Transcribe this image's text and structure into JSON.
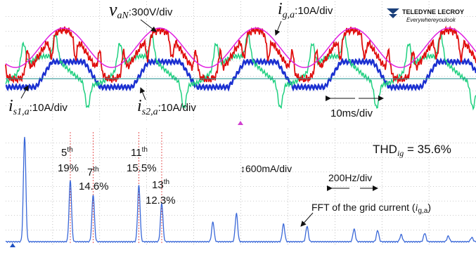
{
  "top_panel": {
    "labels": {
      "v_an": {
        "symbol": "v",
        "sub": "aN",
        "scale": ":300V/div"
      },
      "i_ga": {
        "symbol": "i",
        "sub": "g,a",
        "scale": ":10A/div"
      },
      "i_s1a": {
        "symbol": "i",
        "sub": "s1,a",
        "scale": ":10A/div"
      },
      "i_s2a": {
        "symbol": "i",
        "sub": "s2,a",
        "scale": ":10A/div"
      },
      "time_div": "10ms/div"
    },
    "logo": {
      "brand": "TELEDYNE LECROY",
      "tagline": "Everywhereyoulook"
    }
  },
  "bottom_panel": {
    "harmonics": [
      {
        "order": "5",
        "sup": "th",
        "label": "19%"
      },
      {
        "order": "7",
        "sup": "th",
        "label": "14.6%"
      },
      {
        "order": "11",
        "sup": "th",
        "label": "15.5%"
      },
      {
        "order": "13",
        "sup": "th",
        "label": "12.3%"
      }
    ],
    "thd": {
      "name": "THD",
      "sub": "ig",
      "rest": " = 35.6%"
    },
    "amp_div": "↕600mA/div",
    "freq_div": "200Hz/div",
    "fft_caption": {
      "text": "FFT of the grid current (",
      "symbol": "i",
      "sub": "g,a",
      "close": ")"
    }
  }
}
